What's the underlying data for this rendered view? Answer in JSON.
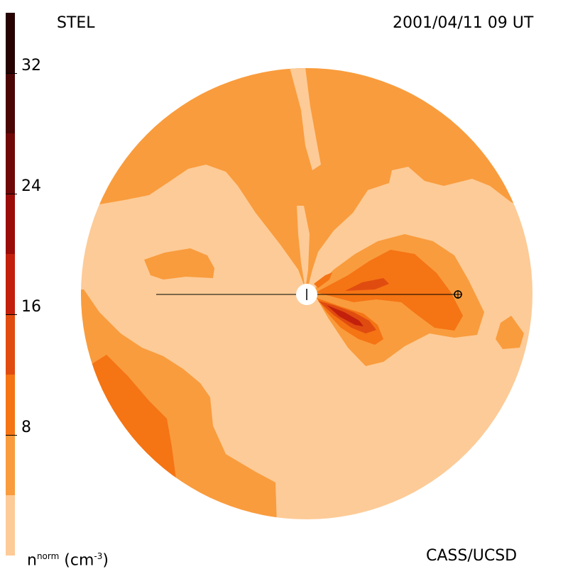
{
  "header": {
    "instrument": "STEL",
    "timestamp": "2001/04/11 09 UT"
  },
  "footer": {
    "quantity_base": "n",
    "quantity_sup": "norm",
    "quantity_unit_open": " (cm",
    "quantity_unit_sup": "-3",
    "quantity_unit_close": ")",
    "credit": "CASS/UCSD"
  },
  "colorbar": {
    "ticks": [
      "32",
      "24",
      "16",
      "8"
    ],
    "tick_values": [
      32,
      24,
      16,
      8
    ],
    "range": [
      0,
      36
    ],
    "levels": [
      {
        "min": 0,
        "max": 4,
        "color": "#fdcb97"
      },
      {
        "min": 4,
        "max": 8,
        "color": "#f99c3d"
      },
      {
        "min": 8,
        "max": 12,
        "color": "#f57414"
      },
      {
        "min": 12,
        "max": 16,
        "color": "#e04c10"
      },
      {
        "min": 16,
        "max": 20,
        "color": "#c2200c"
      },
      {
        "min": 20,
        "max": 24,
        "color": "#9a0c08"
      },
      {
        "min": 24,
        "max": 28,
        "color": "#700808"
      },
      {
        "min": 28,
        "max": 32,
        "color": "#4a0505"
      },
      {
        "min": 32,
        "max": 36,
        "color": "#260202"
      }
    ]
  },
  "map": {
    "sun_marker": "sun-icon",
    "earth_marker": "earth-icon"
  }
}
